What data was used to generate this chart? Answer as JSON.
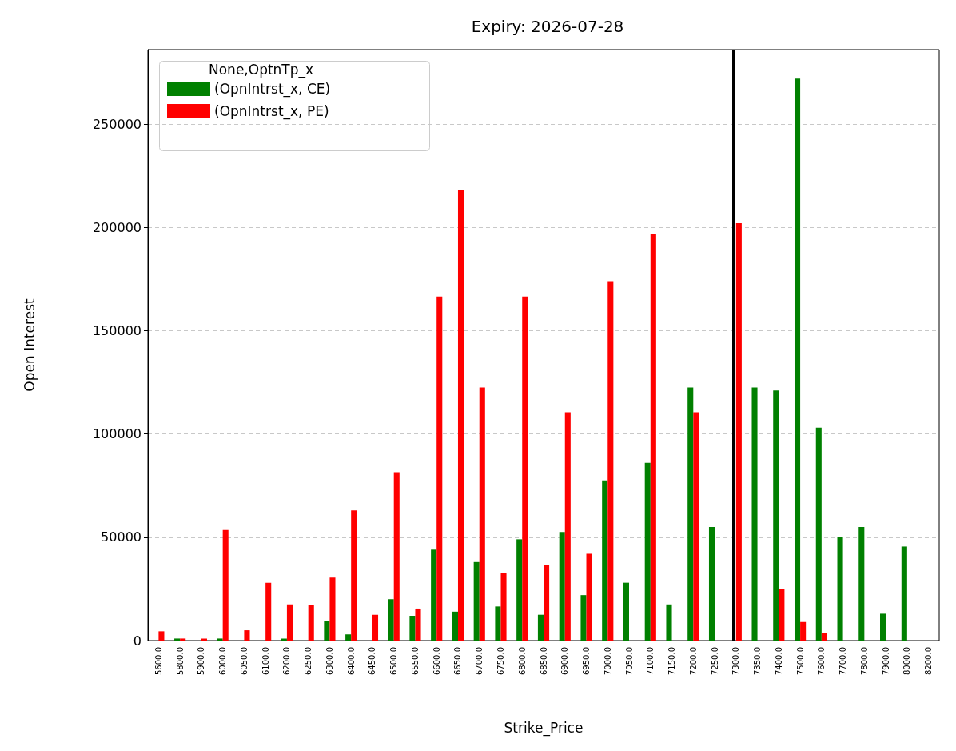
{
  "chart_data": {
    "type": "bar",
    "title": "Expiry: 2026-07-28",
    "xlabel": "Strike_Price",
    "ylabel": "Open Interest",
    "legend_title": "None,OptnTp_x",
    "categories": [
      "5600.0",
      "5800.0",
      "5900.0",
      "6000.0",
      "6050.0",
      "6100.0",
      "6200.0",
      "6250.0",
      "6300.0",
      "6400.0",
      "6450.0",
      "6500.0",
      "6550.0",
      "6600.0",
      "6650.0",
      "6700.0",
      "6750.0",
      "6800.0",
      "6850.0",
      "6900.0",
      "6950.0",
      "7000.0",
      "7050.0",
      "7100.0",
      "7150.0",
      "7200.0",
      "7250.0",
      "7300.0",
      "7350.0",
      "7400.0",
      "7500.0",
      "7600.0",
      "7700.0",
      "7800.0",
      "7900.0",
      "8000.0",
      "8200.0"
    ],
    "series": [
      {
        "name": "(OpnIntrst_x, CE)",
        "color": "#008000",
        "values": [
          0,
          1000,
          0,
          1000,
          0,
          0,
          1000,
          0,
          9500,
          3000,
          0,
          20000,
          12000,
          44000,
          14000,
          38000,
          16500,
          49000,
          12500,
          52500,
          22000,
          77500,
          28000,
          86000,
          17500,
          122500,
          55000,
          null,
          122500,
          121000,
          272000,
          103000,
          50000,
          55000,
          13000,
          45500,
          0
        ]
      },
      {
        "name": "(OpnIntrst_x, PE)",
        "color": "#ff0000",
        "values": [
          4500,
          1000,
          1000,
          53500,
          5000,
          28000,
          17500,
          17000,
          30500,
          63000,
          12500,
          81500,
          15500,
          166500,
          218000,
          122500,
          32500,
          166500,
          36500,
          110500,
          42000,
          174000,
          0,
          197000,
          0,
          110500,
          0,
          202000,
          0,
          25000,
          9000,
          3500,
          0,
          0,
          0,
          0,
          0
        ]
      }
    ],
    "ylim": [
      0,
      286000
    ],
    "yticks": [
      0,
      50000,
      100000,
      150000,
      200000,
      250000
    ],
    "grid": "y",
    "legend": "top left",
    "ref_lines": [
      {
        "axis": "x",
        "value": "7300.0",
        "color": "#000000"
      }
    ]
  }
}
